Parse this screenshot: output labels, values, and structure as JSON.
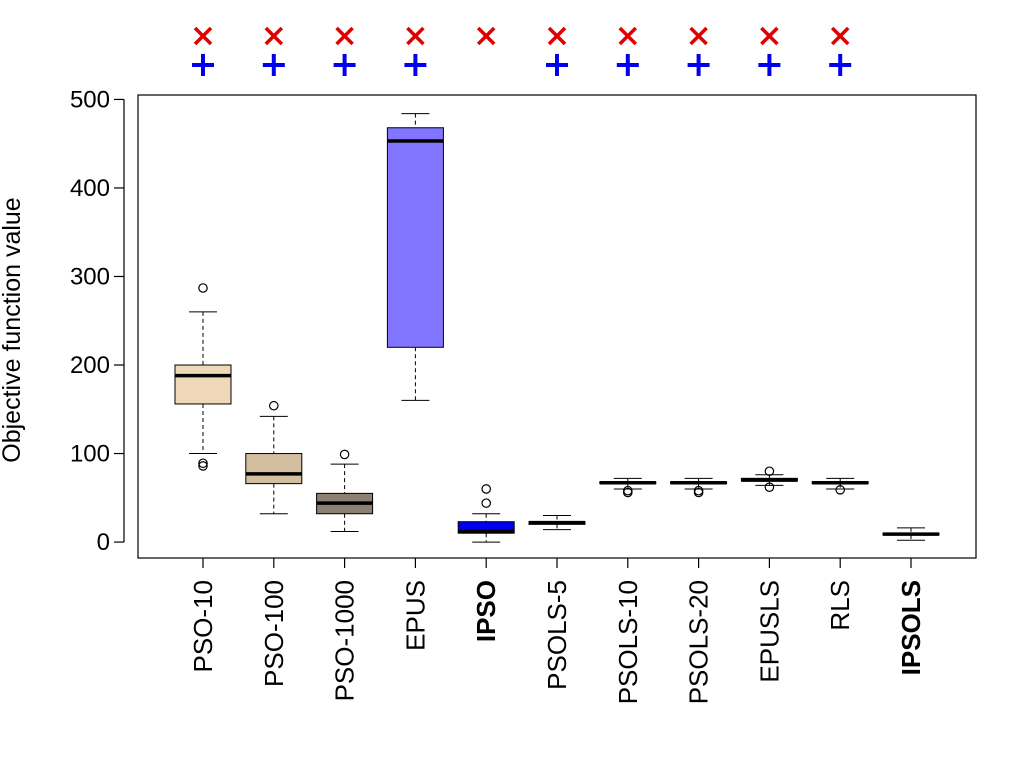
{
  "chart_data": {
    "type": "boxplot",
    "title": "",
    "xlabel": "",
    "ylabel": "Objective function value",
    "ylim": [
      -18,
      505
    ],
    "yticks": [
      0,
      100,
      200,
      300,
      400,
      500
    ],
    "ytick_labels": [
      "0",
      "100",
      "200",
      "300",
      "400",
      "500"
    ],
    "grid": false,
    "legend": "none",
    "markers": {
      "cross_color": "#e00000",
      "plus_color": "#0000ee"
    },
    "categories": [
      {
        "label": "PSO-10",
        "bold": false,
        "fill": "#efd8b8",
        "whisker_low": 100,
        "q1": 156,
        "median": 188,
        "q3": 200,
        "whisker_high": 260,
        "outliers": [
          287,
          89,
          86
        ],
        "cross": true,
        "plus": true
      },
      {
        "label": "PSO-100",
        "bold": false,
        "fill": "#d4bea0",
        "whisker_low": 32,
        "q1": 66,
        "median": 77,
        "q3": 100,
        "whisker_high": 142,
        "outliers": [
          154
        ],
        "cross": true,
        "plus": true
      },
      {
        "label": "PSO-1000",
        "bold": false,
        "fill": "#8c8074",
        "whisker_low": 12,
        "q1": 32,
        "median": 44,
        "q3": 55,
        "whisker_high": 88,
        "outliers": [
          99
        ],
        "cross": true,
        "plus": true
      },
      {
        "label": "EPUS",
        "bold": false,
        "fill": "#8275ff",
        "whisker_low": 160,
        "q1": 220,
        "median": 453,
        "q3": 468,
        "whisker_high": 484,
        "outliers": [],
        "cross": true,
        "plus": true
      },
      {
        "label": "IPSO",
        "bold": true,
        "fill": "#0000f0",
        "whisker_low": 0,
        "q1": 10,
        "median": 12,
        "q3": 23,
        "whisker_high": 32,
        "outliers": [
          60,
          44
        ],
        "cross": true,
        "plus": false
      },
      {
        "label": "PSOLS-5",
        "bold": false,
        "fill": "#ffffff",
        "whisker_low": 14,
        "q1": 20,
        "median": 22,
        "q3": 23,
        "whisker_high": 30,
        "outliers": [],
        "cross": true,
        "plus": true
      },
      {
        "label": "PSOLS-10",
        "bold": false,
        "fill": "#ffffff",
        "whisker_low": 60,
        "q1": 66,
        "median": 67,
        "q3": 68,
        "whisker_high": 72,
        "outliers": [
          58,
          56
        ],
        "cross": true,
        "plus": true
      },
      {
        "label": "PSOLS-20",
        "bold": false,
        "fill": "#ffffff",
        "whisker_low": 60,
        "q1": 66,
        "median": 67,
        "q3": 68,
        "whisker_high": 72,
        "outliers": [
          58,
          56
        ],
        "cross": true,
        "plus": true
      },
      {
        "label": "EPUSLS",
        "bold": false,
        "fill": "#ffffff",
        "whisker_low": 64,
        "q1": 69,
        "median": 70,
        "q3": 72,
        "whisker_high": 76,
        "outliers": [
          80,
          62
        ],
        "cross": true,
        "plus": true
      },
      {
        "label": "RLS",
        "bold": false,
        "fill": "#ffffff",
        "whisker_low": 60,
        "q1": 66,
        "median": 67,
        "q3": 68,
        "whisker_high": 72,
        "outliers": [
          59
        ],
        "cross": true,
        "plus": true
      },
      {
        "label": "IPSOLS",
        "bold": true,
        "fill": "#ffffff",
        "whisker_low": 2,
        "q1": 8,
        "median": 9,
        "q3": 10,
        "whisker_high": 16,
        "outliers": [],
        "cross": false,
        "plus": false
      }
    ]
  }
}
